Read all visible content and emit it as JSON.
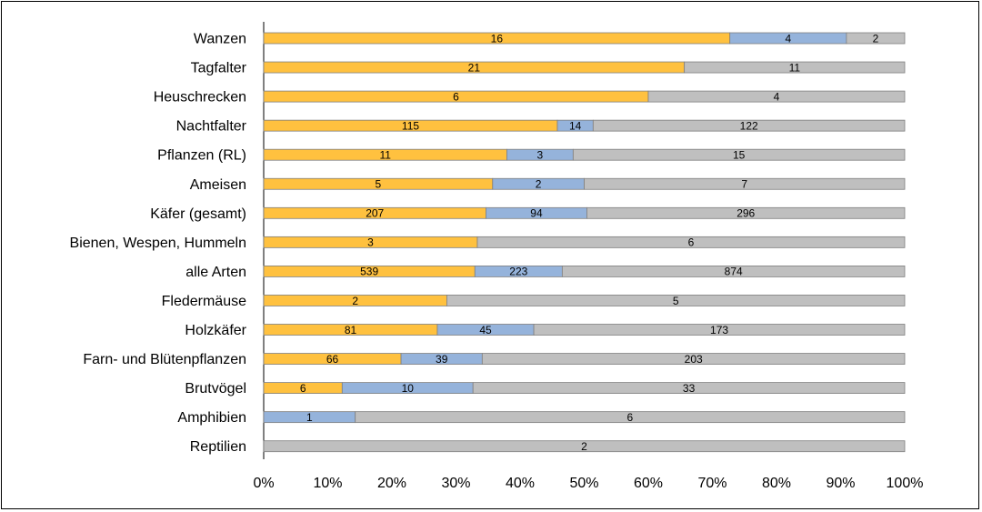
{
  "chart_data": {
    "type": "bar",
    "orientation": "horizontal",
    "stacking": "percent",
    "categories": [
      "Wanzen",
      "Tagfalter",
      "Heuschrecken",
      "Nachtfalter",
      "Pflanzen (RL)",
      "Ameisen",
      "Käfer (gesamt)",
      "Bienen, Wespen, Hummeln",
      "alle Arten",
      "Fledermäuse",
      "Holzkäfer",
      "Farn- und Blütenpflanzen",
      "Brutvögel",
      "Amphibien",
      "Reptilien"
    ],
    "series": [
      {
        "color": "#FFC13F",
        "values": [
          16,
          21,
          6,
          115,
          11,
          5,
          207,
          3,
          539,
          2,
          81,
          66,
          6,
          0,
          0
        ]
      },
      {
        "color": "#95B3DB",
        "values": [
          4,
          0,
          0,
          14,
          3,
          2,
          94,
          0,
          223,
          0,
          45,
          39,
          10,
          1,
          0
        ]
      },
      {
        "color": "#BFBFBF",
        "values": [
          2,
          11,
          4,
          122,
          15,
          7,
          296,
          6,
          874,
          5,
          173,
          203,
          33,
          6,
          2
        ]
      }
    ],
    "xticks": [
      "0%",
      "10%",
      "20%",
      "30%",
      "40%",
      "50%",
      "60%",
      "70%",
      "80%",
      "90%",
      "100%"
    ],
    "xlim": [
      0,
      100
    ],
    "title": "",
    "xlabel": "",
    "ylabel": "",
    "legend": "none",
    "grid": false,
    "data_labels": true
  }
}
